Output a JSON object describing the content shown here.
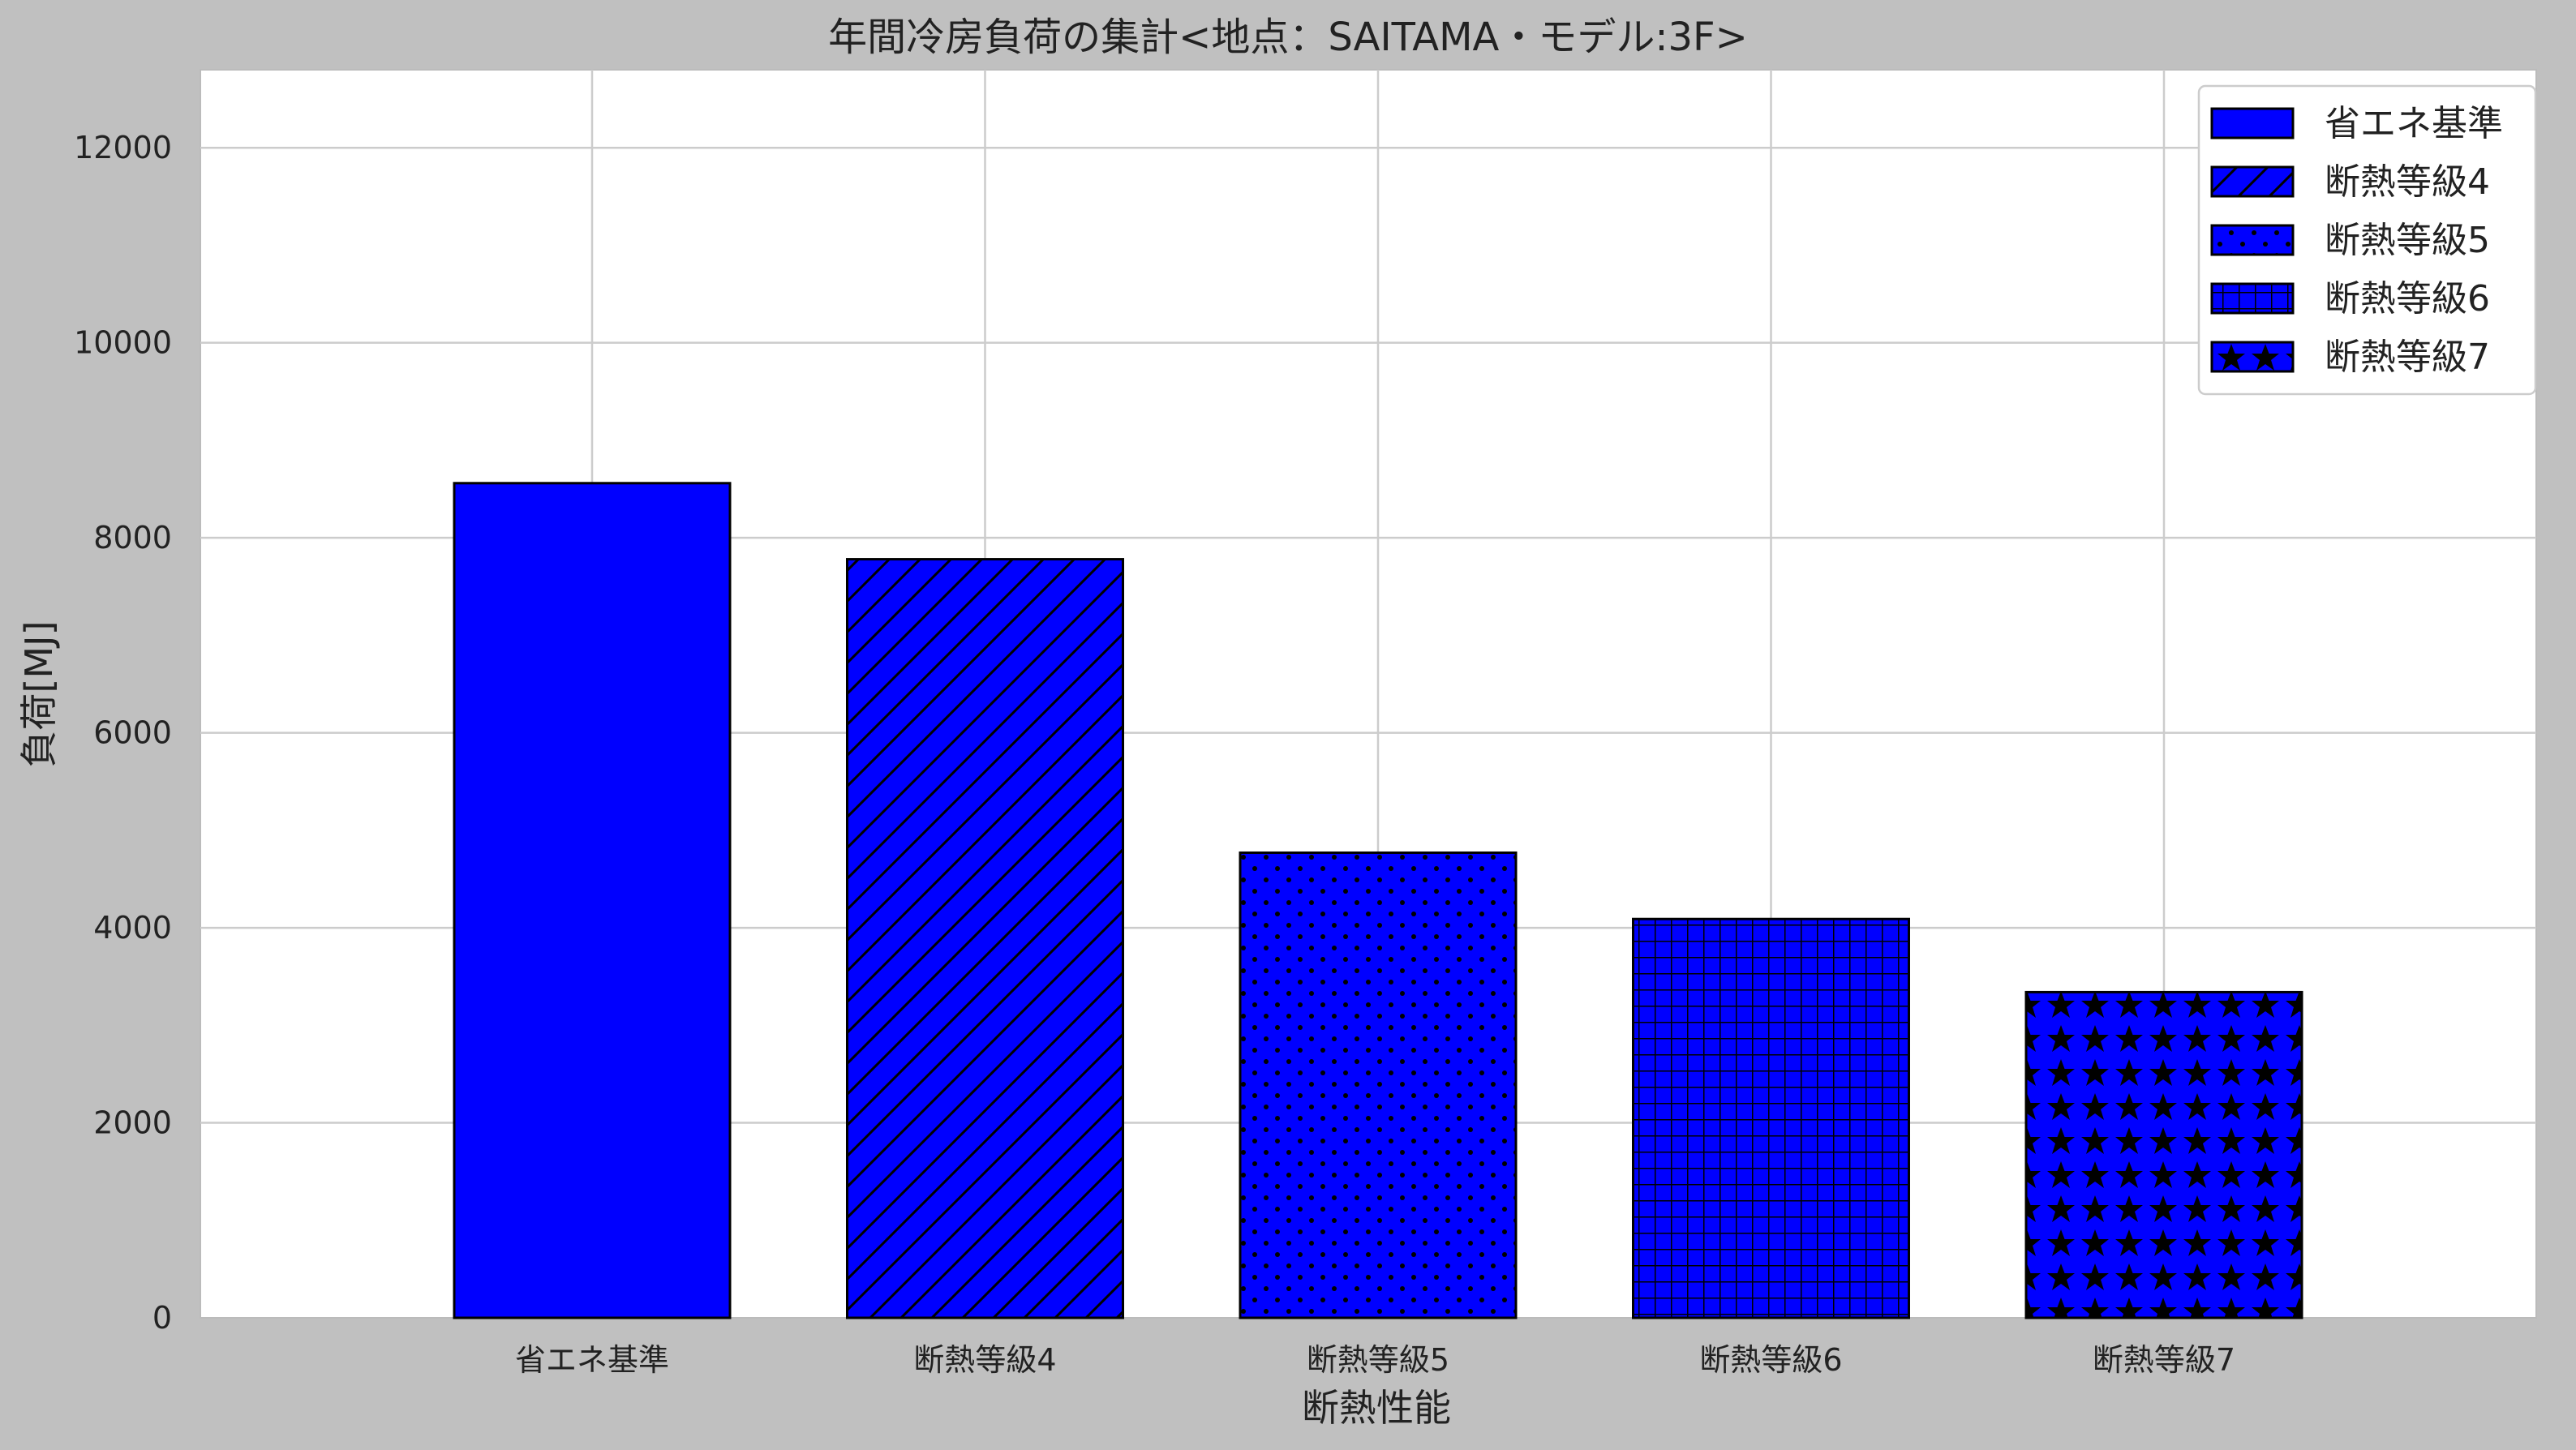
{
  "chart_data": {
    "type": "bar",
    "title": "年間冷房負荷の集計<地点：SAITAMA・モデル:3F>",
    "xlabel": "断熱性能",
    "ylabel": "負荷[MJ]",
    "categories": [
      "省エネ基準",
      "断熱等級4",
      "断熱等級5",
      "断熱等級6",
      "断熱等級7"
    ],
    "values": [
      8560,
      7780,
      4770,
      4090,
      3340
    ],
    "ylim": [
      0,
      12800
    ],
    "yticks": [
      0,
      2000,
      4000,
      6000,
      8000,
      10000,
      12000
    ],
    "grid": true,
    "legend": {
      "position": "top-right",
      "entries": [
        "省エネ基準",
        "断熱等級4",
        "断熱等級5",
        "断熱等級6",
        "断熱等級7"
      ]
    },
    "bar_color": "#0000ff",
    "edge_color": "#000000",
    "hatches": [
      "none",
      "diagonal",
      "dots",
      "grid",
      "stars"
    ]
  }
}
